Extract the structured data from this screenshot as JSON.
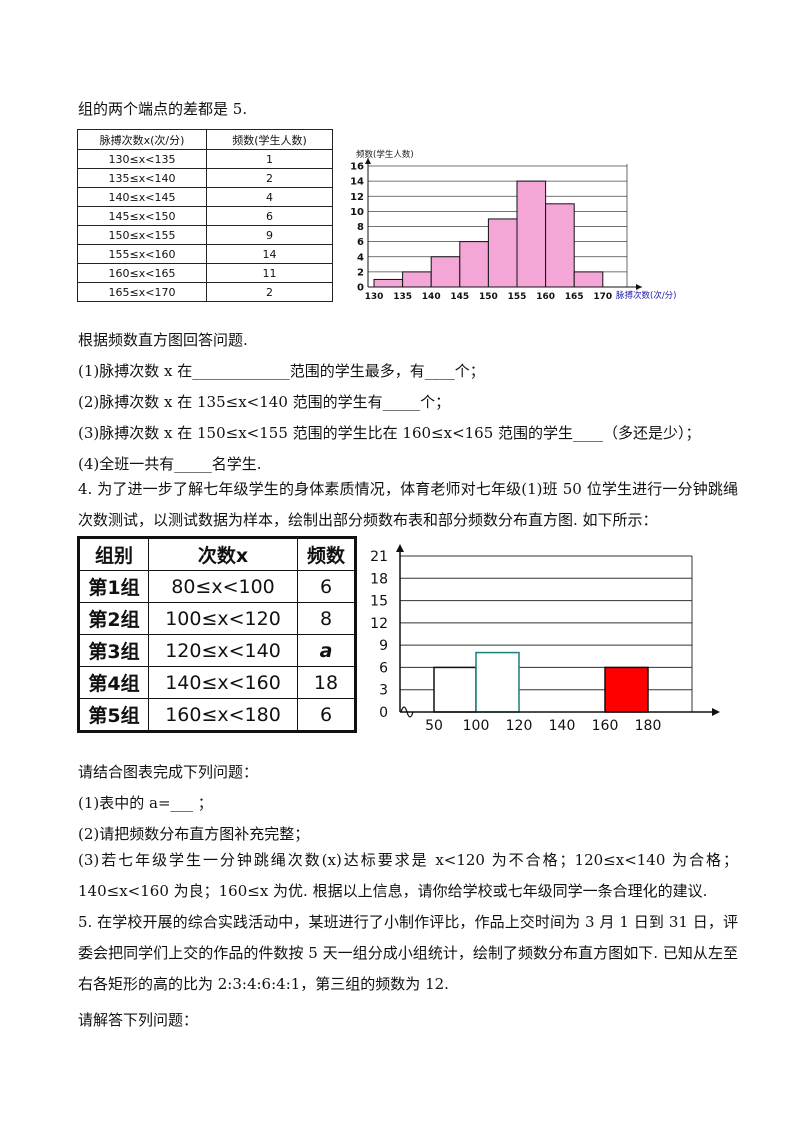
{
  "text": {
    "line_top": "组的两个端点的差都是 5.",
    "q3_intro": "根据频数直方图回答问题.",
    "q3_1": "(1)脉搏次数 x 在_____________范围的学生最多，有____个；",
    "q3_2": "(2)脉搏次数 x 在 135≤x<140 范围的学生有_____个；",
    "q3_3": "(3)脉搏次数 x 在 150≤x<155 范围的学生比在 160≤x<165 范围的学生____（多还是少）；",
    "q3_4": "(4)全班一共有_____名学生.",
    "q4_intro": "4. 为了进一步了解七年级学生的身体素质情况，体育老师对七年级(1)班 50 位学生进行一分钟跳绳次数测试，以测试数据为样本，绘制出部分频数布表和部分频数分布直方图. 如下所示：",
    "q4_ask": "请结合图表完成下列问题：",
    "q4_1": "(1)表中的 a=___ ；",
    "q4_2": "(2)请把频数分布直方图补充完整；",
    "q4_3": "(3)若七年级学生一分钟跳绳次数(x)达标要求是 x<120 为不合格；120≤x<140 为合格；140≤x<160 为良；160≤x 为优. 根据以上信息，请你给学校或七年级同学一条合理化的建议.",
    "q5_intro": "5. 在学校开展的综合实践活动中，某班进行了小制作评比，作品上交时间为 3 月 1 日到 31 日，评委会把同学们上交的作品的件数按 5 天一组分成小组统计，绘制了频数分布直方图如下. 已知从左至右各矩形的高的比为 2:3:4:6:4:1，第三组的频数为 12.",
    "q5_ask": "请解答下列问题："
  },
  "table1": {
    "headers": [
      "脉搏次数x(次/分)",
      "频数(学生人数)"
    ],
    "rows": [
      [
        "130≤x<135",
        "1"
      ],
      [
        "135≤x<140",
        "2"
      ],
      [
        "140≤x<145",
        "4"
      ],
      [
        "145≤x<150",
        "6"
      ],
      [
        "150≤x<155",
        "9"
      ],
      [
        "155≤x<160",
        "14"
      ],
      [
        "160≤x<165",
        "11"
      ],
      [
        "165≤x<170",
        "2"
      ]
    ]
  },
  "table2": {
    "headers": [
      "组别",
      "次数x",
      "频数"
    ],
    "rows": [
      [
        "第1组",
        "80≤x<100",
        "6"
      ],
      [
        "第2组",
        "100≤x<120",
        "8"
      ],
      [
        "第3组",
        "120≤x<140",
        "a"
      ],
      [
        "第4组",
        "140≤x<160",
        "18"
      ],
      [
        "第5组",
        "160≤x<180",
        "6"
      ]
    ]
  },
  "chart_data": [
    {
      "type": "bar",
      "ylabel": "频数(学生人数)",
      "xlabel": "脉搏次数(次/分)",
      "x_ticks": [
        "130",
        "135",
        "140",
        "145",
        "150",
        "155",
        "160",
        "165",
        "170"
      ],
      "y_ticks": [
        "0",
        "2",
        "4",
        "6",
        "8",
        "10",
        "12",
        "14",
        "16"
      ],
      "values": [
        1,
        2,
        4,
        6,
        9,
        14,
        11,
        2
      ],
      "ylim": [
        0,
        16
      ],
      "grid": true,
      "bar_color": "#f4a6d7"
    },
    {
      "type": "bar",
      "x_ticks": [
        "50",
        "100",
        "120",
        "140",
        "160",
        "180"
      ],
      "y_ticks": [
        "0",
        "3",
        "6",
        "9",
        "12",
        "15",
        "18",
        "21"
      ],
      "bars": [
        {
          "from": "80",
          "to": "100",
          "value": 6,
          "fill": "#ffffff",
          "stroke": "#111111"
        },
        {
          "from": "100",
          "to": "120",
          "value": 8,
          "fill": "#ffffff",
          "stroke": "#1a7f7a"
        },
        {
          "from": "160",
          "to": "180",
          "value": 6,
          "fill": "#ff0000",
          "stroke": "#111111"
        }
      ],
      "ylim": [
        0,
        21
      ],
      "grid": true
    }
  ]
}
